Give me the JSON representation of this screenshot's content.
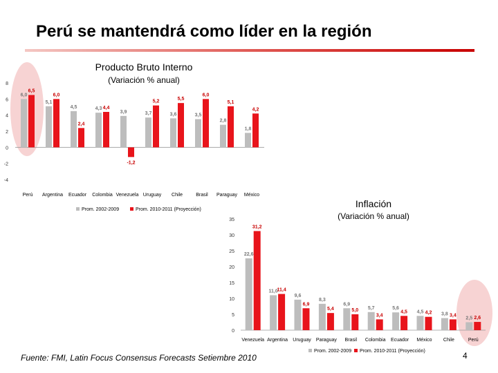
{
  "slide": {
    "title": "Perú se mantendrá como líder en la región",
    "source": "Fuente: FMI, Latin Focus Consensus Forecasts Setiembre 2010",
    "page_number": "4"
  },
  "colors": {
    "series_gray": "#bdbdbd",
    "series_red": "#e8141b",
    "accent": "#c80000",
    "highlight": "#f7d3d3"
  },
  "chart_data": [
    {
      "type": "bar",
      "title": "Producto Bruto Interno",
      "subtitle": "(Variación % anual)",
      "categories": [
        "Perú",
        "Argentina",
        "Ecuador",
        "Colombia",
        "Venezuela",
        "Uruguay",
        "Chile",
        "Brasil",
        "Paraguay",
        "México"
      ],
      "series": [
        {
          "name": "Prom. 2002-2009",
          "values": [
            6.0,
            5.1,
            4.5,
            4.3,
            3.9,
            3.7,
            3.6,
            3.5,
            2.8,
            1.8
          ],
          "labels": [
            "6,0",
            "5,1",
            "4,5",
            "4,3",
            "3,9",
            "3,7",
            "3,6",
            "3,5",
            "2,8",
            "1,8"
          ]
        },
        {
          "name": "Prom. 2010-2011 (Proyección)",
          "values": [
            6.5,
            6.0,
            2.4,
            4.4,
            -1.2,
            5.2,
            5.5,
            6.0,
            5.1,
            4.2
          ],
          "labels": [
            "6,5",
            "6,0",
            "2,4",
            "4,4",
            "-1,2",
            "5,2",
            "5,5",
            "6,0",
            "5,1",
            "4,2"
          ]
        }
      ],
      "ylim": [
        -4,
        8
      ],
      "yticks": [
        "-4",
        "-2",
        "0",
        "2",
        "4",
        "6",
        "8"
      ],
      "legend_position": "bottom"
    },
    {
      "type": "bar",
      "title": "Inflación",
      "subtitle": "(Variación % anual)",
      "categories": [
        "Venezuela",
        "Argentina",
        "Uruguay",
        "Paraguay",
        "Brasil",
        "Colombia",
        "Ecuador",
        "México",
        "Chile",
        "Perú"
      ],
      "series": [
        {
          "name": "Prom. 2002-2009",
          "values": [
            22.6,
            11.0,
            9.6,
            8.3,
            6.9,
            5.7,
            5.6,
            4.5,
            3.8,
            2.5
          ],
          "labels": [
            "22,6",
            "11,0",
            "9,6",
            "8,3",
            "6,9",
            "5,7",
            "5,6",
            "4,5",
            "3,8",
            "2,5"
          ]
        },
        {
          "name": "Prom. 2010-2011 (Proyección)",
          "values": [
            31.2,
            11.4,
            6.9,
            5.4,
            5.0,
            3.4,
            4.5,
            4.2,
            3.4,
            2.6
          ],
          "labels": [
            "31,2",
            "11,4",
            "6,9",
            "5,4",
            "5,0",
            "3,4",
            "4,5",
            "4,2",
            "3,4",
            "2,6"
          ]
        }
      ],
      "ylim": [
        0,
        35
      ],
      "yticks": [
        "0",
        "5",
        "10",
        "15",
        "20",
        "25",
        "30",
        "35"
      ],
      "legend_position": "bottom"
    }
  ]
}
